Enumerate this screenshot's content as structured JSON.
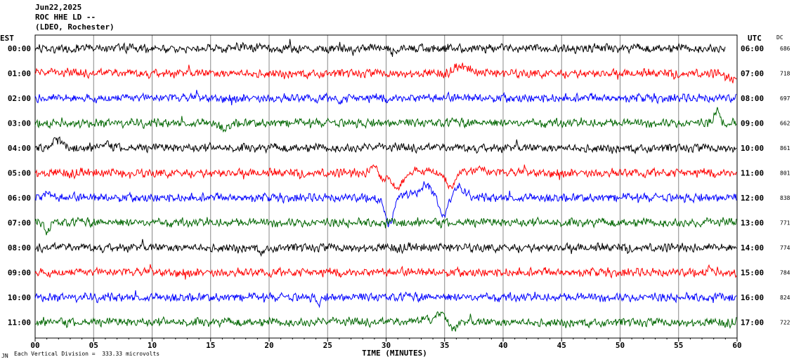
{
  "header": {
    "date": "Jun22,2025",
    "station": "ROC HHE LD --",
    "network": "(LDEO, Rochester)"
  },
  "left_axis_label": "EST",
  "right_axis_label": "UTC",
  "dc_label": "DC",
  "xlabel": "TIME (MINUTES)",
  "footer": {
    "scale_text": "Each Vertical Division =  333.33 microvolts",
    "corner_mark": "JN"
  },
  "chart_data": {
    "type": "line",
    "xlabel": "TIME (MINUTES)",
    "xlim": [
      0,
      60
    ],
    "x_ticks": [
      "00",
      "05",
      "10",
      "15",
      "20",
      "25",
      "30",
      "35",
      "40",
      "45",
      "50",
      "55",
      "60"
    ],
    "grid_vertical_minutes": [
      0,
      5,
      10,
      15,
      20,
      25,
      30,
      35,
      40,
      45,
      50,
      55,
      60
    ],
    "colors": [
      "#000000",
      "#ff0000",
      "#0000ff",
      "#006600"
    ],
    "series": [
      {
        "est": "00:00",
        "utc": "06:00",
        "dc": "686",
        "color": "#000000",
        "end_minute": 59,
        "events": [
          [
            17.8,
            0.6,
            -3
          ],
          [
            30.7,
            0.5,
            4
          ]
        ]
      },
      {
        "est": "01:00",
        "utc": "07:00",
        "dc": "718",
        "color": "#ff0000",
        "end_minute": 60,
        "events": [
          [
            36.5,
            1.0,
            -9
          ],
          [
            59.5,
            0.7,
            8
          ]
        ]
      },
      {
        "est": "02:00",
        "utc": "08:00",
        "dc": "697",
        "color": "#0000ff",
        "end_minute": 60,
        "events": [
          [
            26,
            0.4,
            4
          ]
        ]
      },
      {
        "est": "03:00",
        "utc": "09:00",
        "dc": "662",
        "color": "#006600",
        "end_minute": 60,
        "events": [
          [
            16.2,
            0.5,
            8
          ],
          [
            58.4,
            0.45,
            -20
          ],
          [
            58.8,
            0.4,
            8
          ]
        ]
      },
      {
        "est": "04:00",
        "utc": "10:00",
        "dc": "861",
        "color": "#000000",
        "end_minute": 60,
        "events": [
          [
            1.8,
            0.5,
            -14
          ],
          [
            6.2,
            0.8,
            -4
          ]
        ]
      },
      {
        "est": "05:00",
        "utc": "11:00",
        "dc": "801",
        "color": "#ff0000",
        "end_minute": 60,
        "events": [
          [
            29.0,
            0.4,
            -14
          ],
          [
            29.7,
            0.5,
            12
          ],
          [
            30.8,
            0.45,
            20
          ],
          [
            31.4,
            0.5,
            10
          ],
          [
            33.3,
            1.4,
            -4
          ],
          [
            34.8,
            0.5,
            4
          ],
          [
            35.6,
            0.5,
            24
          ],
          [
            36.3,
            0.5,
            -4
          ],
          [
            38.1,
            0.4,
            -7
          ],
          [
            8.0,
            0.6,
            3
          ]
        ]
      },
      {
        "est": "06:00",
        "utc": "12:00",
        "dc": "838",
        "color": "#0000ff",
        "end_minute": 60,
        "events": [
          [
            30.0,
            0.4,
            20
          ],
          [
            30.4,
            0.35,
            30
          ],
          [
            31.7,
            0.7,
            -6
          ],
          [
            33.4,
            0.8,
            -18
          ],
          [
            34.8,
            0.5,
            20
          ],
          [
            35.0,
            0.3,
            10
          ],
          [
            36.1,
            0.5,
            -14
          ],
          [
            37.0,
            0.6,
            -5
          ],
          [
            1.0,
            0.4,
            -6
          ]
        ]
      },
      {
        "est": "07:00",
        "utc": "13:00",
        "dc": "771",
        "color": "#006600",
        "end_minute": 60,
        "events": [
          [
            1.0,
            0.3,
            14
          ],
          [
            56.6,
            0.4,
            5
          ]
        ]
      },
      {
        "est": "08:00",
        "utc": "14:00",
        "dc": "774",
        "color": "#000000",
        "end_minute": 60,
        "events": [
          [
            19.5,
            0.4,
            5
          ]
        ]
      },
      {
        "est": "09:00",
        "utc": "15:00",
        "dc": "784",
        "color": "#ff0000",
        "end_minute": 60,
        "events": [
          [
            57.6,
            0.4,
            -5
          ]
        ]
      },
      {
        "est": "10:00",
        "utc": "16:00",
        "dc": "824",
        "color": "#0000ff",
        "end_minute": 60,
        "events": [
          [
            24.3,
            0.3,
            7
          ]
        ]
      },
      {
        "est": "11:00",
        "utc": "17:00",
        "dc": "722",
        "color": "#006600",
        "end_minute": 60,
        "events": [
          [
            33.4,
            0.7,
            -7
          ],
          [
            34.8,
            0.5,
            -18
          ],
          [
            35.5,
            0.7,
            9
          ]
        ]
      }
    ]
  }
}
